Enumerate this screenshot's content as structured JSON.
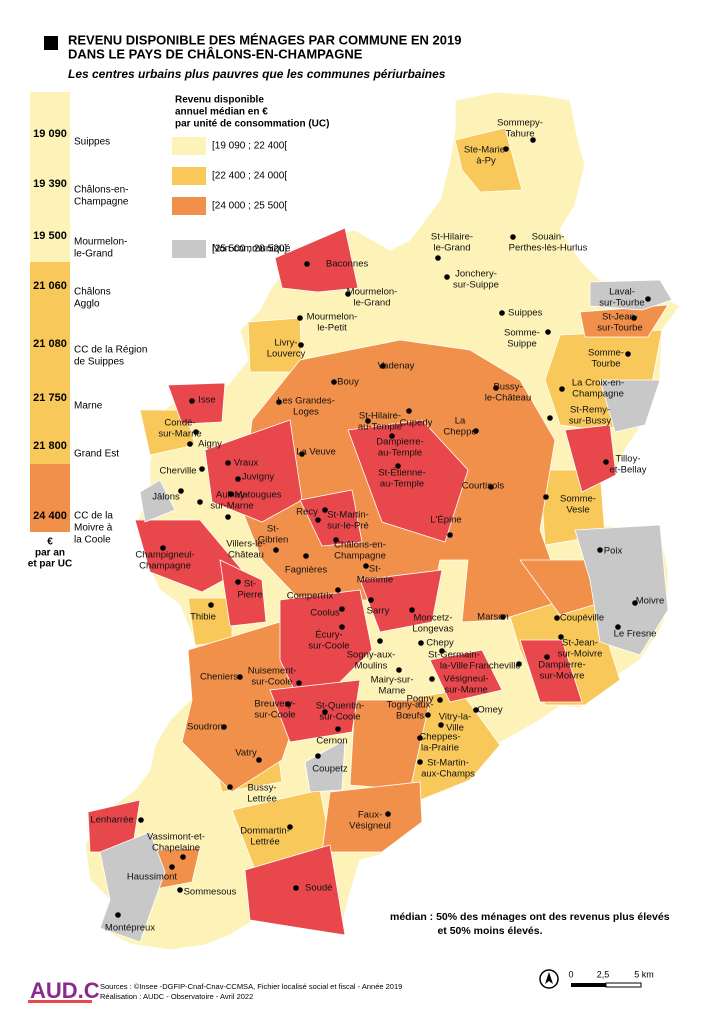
{
  "header": {
    "title": [
      "REVENU DISPONIBLE DES MÉNAGES PAR COMMUNE EN 2019",
      "DANS LE PAYS DE CHÂLONS-EN-CHAMPAGNE"
    ],
    "subtitle": "Les centres urbains plus pauvres que les communes périurbaines"
  },
  "sidebar": {
    "items": [
      {
        "value": "19 090",
        "label": [
          "Suippes"
        ]
      },
      {
        "value": "19 390",
        "label": [
          "Châlons-en-",
          "Champagne"
        ]
      },
      {
        "value": "19 500",
        "label": [
          "Mourmelon-",
          "le-Grand"
        ]
      },
      {
        "value": "21 060",
        "label": [
          "Châlons",
          "Agglo"
        ]
      },
      {
        "value": "21 080",
        "label": [
          "CC de la Région",
          "de Suippes"
        ]
      },
      {
        "value": "21 750",
        "label": [
          "Marne"
        ]
      },
      {
        "value": "21 800",
        "label": [
          "Grand Est"
        ]
      },
      {
        "value": "24 400",
        "label": [
          "CC de la",
          "Moivre à",
          "la Coole"
        ]
      }
    ],
    "unit": [
      "€",
      "par an",
      "et par UC"
    ]
  },
  "legend": {
    "title": [
      "Revenu disponible",
      "annuel médian en €",
      "par unité de consommation (UC)"
    ],
    "classes": [
      {
        "label": "[19 090 ; 22 400[",
        "color": "#fdf3b8"
      },
      {
        "label": "[22 400 ; 24 000[",
        "color": "#f9c85a"
      },
      {
        "label": "[24 000 ; 25 500[",
        "color": "#f0904a"
      },
      {
        "label": "[25 500 ; 28 520]",
        "color": "#e8484c"
      },
      {
        "label": "Non communiqué",
        "color": "#c8c8c8"
      }
    ]
  },
  "communes": [
    [
      "Sommepy-",
      "Tahure"
    ],
    [
      "Ste-Marie-",
      "à-Py"
    ],
    [
      "St-Hilaire-",
      "le-Grand"
    ],
    [
      "Souain-",
      "Perthes-lès-Hurlus"
    ],
    [
      "Baconnes"
    ],
    [
      "Jonchery-",
      "sur-Suippe"
    ],
    [
      "Laval-",
      "sur-Tourbe"
    ],
    [
      "Mourmelon-",
      "le-Grand"
    ],
    [
      "Suippes"
    ],
    [
      "Mourmelon-",
      "le-Petit"
    ],
    [
      "St-Jean-",
      "sur-Tourbe"
    ],
    [
      "Somme-",
      "Suippe"
    ],
    [
      "Livry-",
      "Louvercy"
    ],
    [
      "Somme-",
      "Tourbe"
    ],
    [
      "Vadenay"
    ],
    [
      "Bouy"
    ],
    [
      "Bussy-",
      "le-Château"
    ],
    [
      "La Croix-en-",
      "Champagne"
    ],
    [
      "Les Grandes-",
      "Loges"
    ],
    [
      "Isse"
    ],
    [
      "Cuperly"
    ],
    [
      "St-Remy-",
      "sur-Bussy"
    ],
    [
      "St-Hilaire-",
      "au-Temple"
    ],
    [
      "Condé-",
      "sur-Marne"
    ],
    [
      "La",
      "Cheppe"
    ],
    [
      "Dampierre-",
      "au-Temple"
    ],
    [
      "Aigny"
    ],
    [
      "Tilloy-",
      "et-Bellay"
    ],
    [
      "La Veuve"
    ],
    [
      "Vraux"
    ],
    [
      "St-Étienne-",
      "au-Temple"
    ],
    [
      "Cherville"
    ],
    [
      "Juvigny"
    ],
    [
      "Courtisols"
    ],
    [
      "Jâlons"
    ],
    [
      "Aulnay-",
      "sur-Marne"
    ],
    [
      "Matougues"
    ],
    [
      "Somme-",
      "Vesle"
    ],
    [
      "Recy"
    ],
    [
      "St-Martin-",
      "sur-le-Pré"
    ],
    [
      "L'Épine"
    ],
    [
      "St-",
      "Gibrien"
    ],
    [
      "Villers-le-",
      "Château"
    ],
    [
      "Champigneul-",
      "Champagne"
    ],
    [
      "Châlons-en-",
      "Champagne"
    ],
    [
      "Poix"
    ],
    [
      "Fagnières"
    ],
    [
      "St-",
      "Memmie"
    ],
    [
      "Compertrix"
    ],
    [
      "St-",
      "Pierre"
    ],
    [
      "Moivre"
    ],
    [
      "Thibie"
    ],
    [
      "Coolus"
    ],
    [
      "Sarry"
    ],
    [
      "Moncetz-",
      "Longevas"
    ],
    [
      "Marson"
    ],
    [
      "Coupéville"
    ],
    [
      "Le Fresne"
    ],
    [
      "Écury-",
      "sur-Coole"
    ],
    [
      "Chepy"
    ],
    [
      "St-Jean-",
      "sur-Moivre"
    ],
    [
      "Sogny-aux-",
      "Moulins"
    ],
    [
      "St-Germain-",
      "la-Ville"
    ],
    [
      "Cheniers"
    ],
    [
      "Nuisement-",
      "sur-Coole"
    ],
    [
      "Mairy-sur-",
      "Marne"
    ],
    [
      "Francheville"
    ],
    [
      "Dampierre-",
      "sur-Moivre"
    ],
    [
      "Vésigneul-",
      "sur-Marne"
    ],
    [
      "Pogny"
    ],
    [
      "Breuvery-",
      "sur-Coole"
    ],
    [
      "Togny-aux-",
      "Bœufs"
    ],
    [
      "St-Quentin-",
      "sur-Coole"
    ],
    [
      "Omey"
    ],
    [
      "Soudron"
    ],
    [
      "Vitry-la-",
      "Ville"
    ],
    [
      "Cernon"
    ],
    [
      "Cheppes-",
      "la-Prairie"
    ],
    [
      "Vatry"
    ],
    [
      "St-Martin-",
      "aux-Champs"
    ],
    [
      "Coupetz"
    ],
    [
      "Bussy-",
      "Lettrée"
    ],
    [
      "Faux-",
      "Vésigneul"
    ],
    [
      "Lenharrée"
    ],
    [
      "Dommartin-",
      "Lettrée"
    ],
    [
      "Vassimont-et-",
      "Chapelaine"
    ],
    [
      "Haussimont"
    ],
    [
      "Sommesous"
    ],
    [
      "Soudé"
    ],
    [
      "Montépreux"
    ]
  ],
  "footnote": [
    "médian : 50% des ménages ont des revenus plus élevés",
    "et 50% moins élevés."
  ],
  "sources": [
    "Sources : ©Insee -DGFIP-Cnaf-Cnav-CCMSA, Fichier localisé social et fiscal - Année 2019",
    "Réalisation : AUDC - Observatoire - Avril 2022"
  ],
  "scale": [
    "0",
    "2,5",
    "5 km"
  ],
  "logo": "AUD.C"
}
